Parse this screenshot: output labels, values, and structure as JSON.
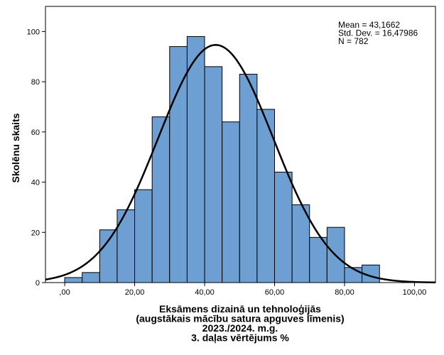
{
  "chart_data": {
    "type": "bar",
    "subtype": "histogram",
    "bin_width": 5,
    "bins": [
      {
        "x0": 0,
        "x1": 5,
        "count": 2
      },
      {
        "x0": 5,
        "x1": 10,
        "count": 4
      },
      {
        "x0": 10,
        "x1": 15,
        "count": 21
      },
      {
        "x0": 15,
        "x1": 20,
        "count": 29
      },
      {
        "x0": 20,
        "x1": 25,
        "count": 37
      },
      {
        "x0": 25,
        "x1": 30,
        "count": 66
      },
      {
        "x0": 30,
        "x1": 35,
        "count": 94
      },
      {
        "x0": 35,
        "x1": 40,
        "count": 98
      },
      {
        "x0": 40,
        "x1": 45,
        "count": 86
      },
      {
        "x0": 45,
        "x1": 50,
        "count": 64
      },
      {
        "x0": 50,
        "x1": 55,
        "count": 83
      },
      {
        "x0": 55,
        "x1": 60,
        "count": 69
      },
      {
        "x0": 60,
        "x1": 65,
        "count": 44
      },
      {
        "x0": 65,
        "x1": 70,
        "count": 31
      },
      {
        "x0": 70,
        "x1": 75,
        "count": 18
      },
      {
        "x0": 75,
        "x1": 80,
        "count": 22
      },
      {
        "x0": 80,
        "x1": 85,
        "count": 6
      },
      {
        "x0": 85,
        "x1": 90,
        "count": 7
      }
    ],
    "normal_curve": {
      "mean": 43.1662,
      "std": 16.47986,
      "n": 782
    },
    "stats_text": [
      "Mean = 43,1662",
      "Std. Dev. = 16,47986",
      "N = 782"
    ],
    "xlabel_lines": [
      "Eksāmens dizainā un tehnoloģijās",
      "(augstākais mācību satura apguves līmenis)",
      "2023./2024. m.g.",
      "3. daļas vērtējums %"
    ],
    "ylabel": "Skolēnu skaits",
    "xlim": [
      -5.5,
      106
    ],
    "ylim": [
      0,
      110
    ],
    "x_ticks": [
      0,
      20,
      40,
      60,
      80,
      100
    ],
    "x_tick_labels": [
      ",00",
      "20,00",
      "40,00",
      "60,00",
      "80,00",
      "100,00"
    ],
    "y_ticks": [
      0,
      20,
      40,
      60,
      80,
      100
    ],
    "y_tick_labels": [
      "0",
      "20",
      "40",
      "60",
      "80",
      "100"
    ],
    "grid": false,
    "legend": "none",
    "bar_color": "#6d9fd3",
    "bar_edge_color": "#000000",
    "curve_color": "#000000"
  }
}
